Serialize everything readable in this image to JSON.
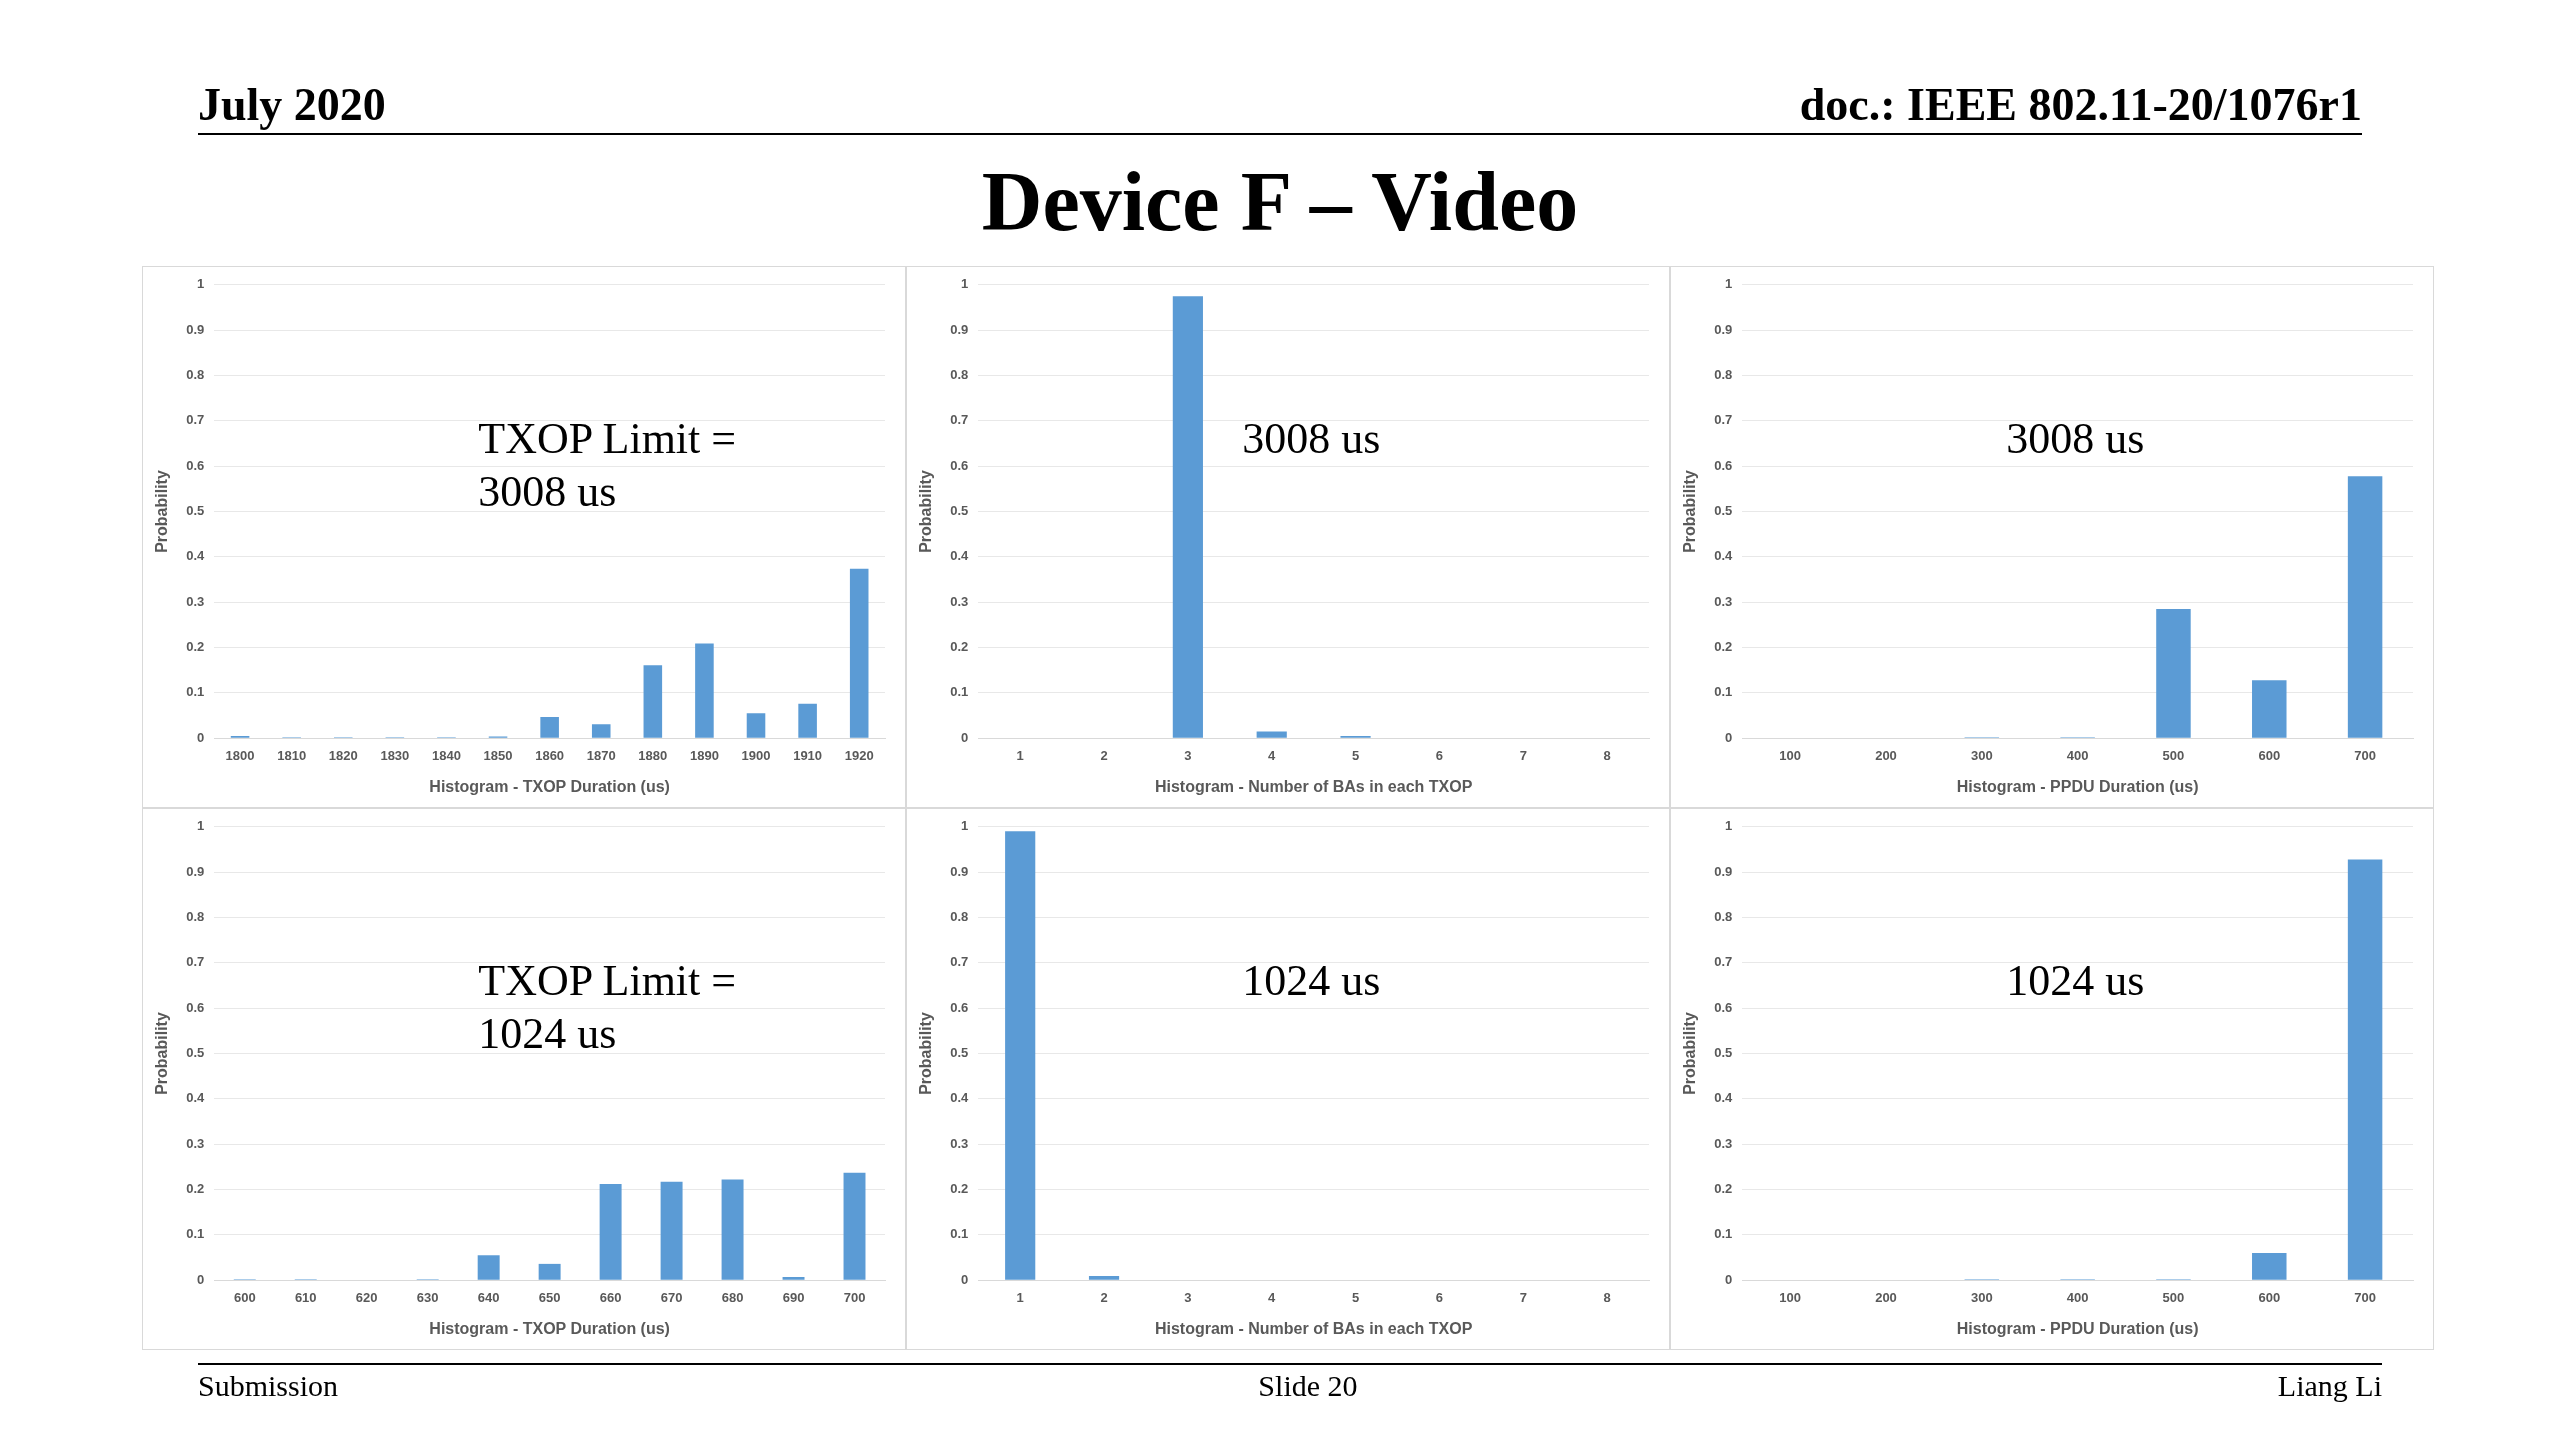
{
  "chart_data": [
    {
      "type": "bar",
      "annotations": [
        "July 2020",
        "doc.: IEEE 802.11-20/1076r1",
        "Device F – Video",
        "Submission",
        "Slide 20",
        "Liang Li",
        "TXOP Limit = 3008 us"
      ],
      "xlabel": "Histogram - TXOP Duration (us)",
      "ylabel": "Probability",
      "categories": [
        "1800",
        "1810",
        "1820",
        "1830",
        "1840",
        "1850",
        "1860",
        "1870",
        "1880",
        "1890",
        "1900",
        "1910",
        "1920"
      ],
      "values": [
        0.005,
        0.002,
        0.002,
        0.002,
        0.002,
        0.004,
        0.047,
        0.031,
        0.161,
        0.209,
        0.055,
        0.076,
        0.374
      ],
      "color": "#5b9bd5",
      "ylim": [
        0,
        1
      ],
      "yticks": [
        0,
        0.1,
        0.2,
        0.3,
        0.4,
        0.5,
        0.6,
        0.7,
        0.8,
        0.9,
        1
      ],
      "grid": "y"
    },
    {
      "type": "bar",
      "annotations": [
        "3008 us"
      ],
      "xlabel": "Histogram - Number of BAs in each TXOP",
      "ylabel": "Probability",
      "categories": [
        "1",
        "2",
        "3",
        "4",
        "5",
        "6",
        "7",
        "8"
      ],
      "values": [
        0,
        0,
        0.975,
        0.015,
        0.005,
        0,
        0,
        0
      ],
      "color": "#5b9bd5",
      "ylim": [
        0,
        1
      ],
      "yticks": [
        0,
        0.1,
        0.2,
        0.3,
        0.4,
        0.5,
        0.6,
        0.7,
        0.8,
        0.9,
        1
      ],
      "grid": "y"
    },
    {
      "type": "bar",
      "annotations": [
        "3008 us"
      ],
      "xlabel": "Histogram - PPDU Duration (us)",
      "ylabel": "Probability",
      "categories": [
        "100",
        "200",
        "300",
        "400",
        "500",
        "600",
        "700"
      ],
      "values": [
        0,
        0,
        0.002,
        0.002,
        0.285,
        0.128,
        0.578
      ],
      "color": "#5b9bd5",
      "ylim": [
        0,
        1
      ],
      "yticks": [
        0,
        0.1,
        0.2,
        0.3,
        0.4,
        0.5,
        0.6,
        0.7,
        0.8,
        0.9,
        1
      ],
      "grid": "y"
    },
    {
      "type": "bar",
      "annotations": [
        "TXOP Limit = 1024 us"
      ],
      "xlabel": "Histogram - TXOP Duration (us)",
      "ylabel": "Probability",
      "categories": [
        "600",
        "610",
        "620",
        "630",
        "640",
        "650",
        "660",
        "670",
        "680",
        "690",
        "700"
      ],
      "values": [
        0.002,
        0.002,
        0,
        0.002,
        0.055,
        0.036,
        0.212,
        0.217,
        0.222,
        0.007,
        0.237
      ],
      "color": "#5b9bd5",
      "ylim": [
        0,
        1
      ],
      "yticks": [
        0,
        0.1,
        0.2,
        0.3,
        0.4,
        0.5,
        0.6,
        0.7,
        0.8,
        0.9,
        1
      ],
      "grid": "y"
    },
    {
      "type": "bar",
      "annotations": [
        "1024 us"
      ],
      "xlabel": "Histogram - Number of BAs in each TXOP",
      "ylabel": "Probability",
      "categories": [
        "1",
        "2",
        "3",
        "4",
        "5",
        "6",
        "7",
        "8"
      ],
      "values": [
        0.99,
        0.009,
        0,
        0,
        0,
        0,
        0,
        0
      ],
      "color": "#5b9bd5",
      "ylim": [
        0,
        1
      ],
      "yticks": [
        0,
        0.1,
        0.2,
        0.3,
        0.4,
        0.5,
        0.6,
        0.7,
        0.8,
        0.9,
        1
      ],
      "grid": "y"
    },
    {
      "type": "bar",
      "annotations": [
        "1024 us"
      ],
      "xlabel": "Histogram - PPDU Duration (us)",
      "ylabel": "Probability",
      "categories": [
        "100",
        "200",
        "300",
        "400",
        "500",
        "600",
        "700"
      ],
      "values": [
        0,
        0,
        0.002,
        0.002,
        0.002,
        0.06,
        0.928
      ],
      "color": "#5b9bd5",
      "ylim": [
        0,
        1
      ],
      "yticks": [
        0,
        0.1,
        0.2,
        0.3,
        0.4,
        0.5,
        0.6,
        0.7,
        0.8,
        0.9,
        1
      ],
      "grid": "y"
    }
  ]
}
